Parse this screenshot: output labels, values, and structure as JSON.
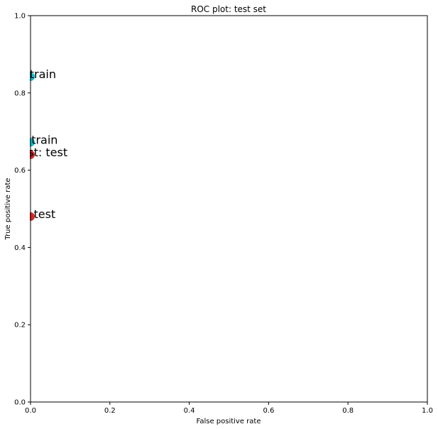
{
  "chart_data": {
    "type": "scatter",
    "title": "ROC plot: test set",
    "xlabel": "False positive rate",
    "ylabel": "True positive rate",
    "xlim": [
      0,
      1
    ],
    "ylim": [
      0,
      1
    ],
    "xticks": [
      "0.0",
      "0.2",
      "0.4",
      "0.6",
      "0.8",
      "1.0"
    ],
    "yticks": [
      "0.0",
      "0.2",
      "0.4",
      "0.6",
      "0.8",
      "1.0"
    ],
    "grid": false,
    "points": [
      {
        "label": "nn: train",
        "x": 0.0,
        "y": 0.842,
        "color": "#17becf"
      },
      {
        "label": "prc: train",
        "x": 0.0,
        "y": 0.672,
        "color": "#17becf"
      },
      {
        "label": "nn_test: test",
        "x": 0.0,
        "y": 0.64,
        "color": "#d62728"
      },
      {
        "label": "prc: test",
        "x": 0.0,
        "y": 0.48,
        "color": "#d62728"
      }
    ]
  }
}
